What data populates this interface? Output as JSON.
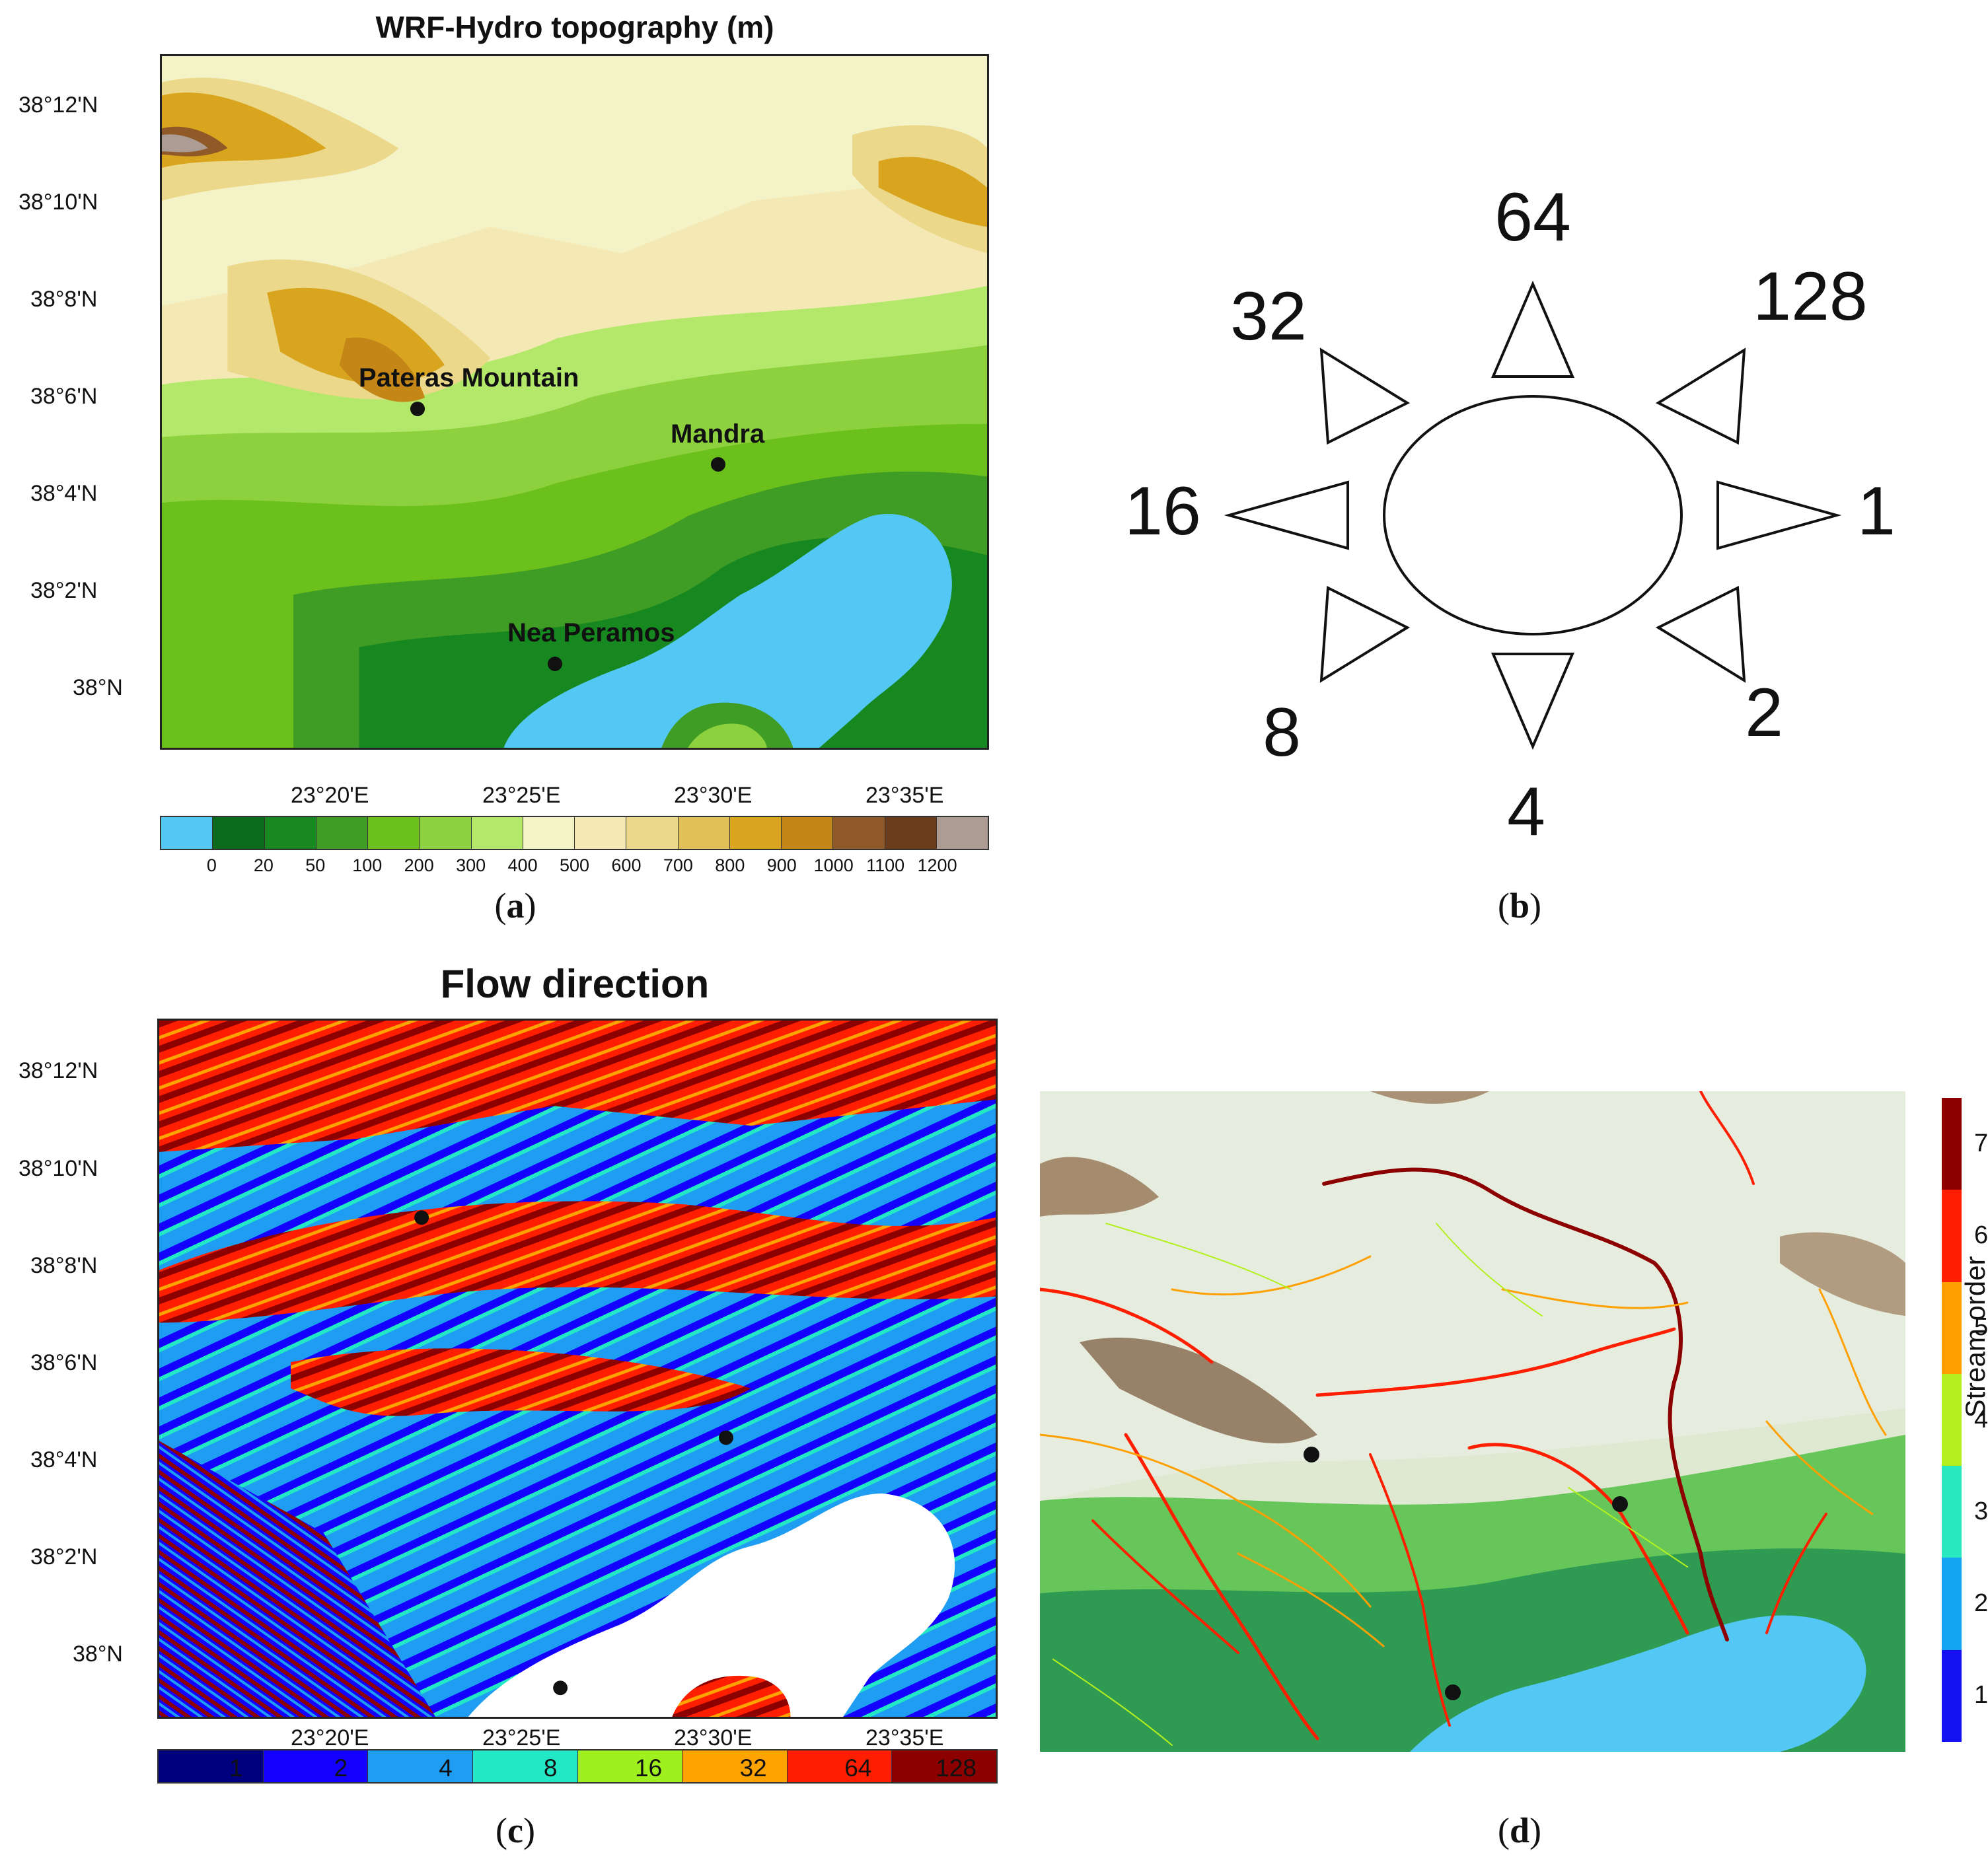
{
  "panel_a": {
    "title": "WRF-Hydro topography (m)",
    "lat_labels": [
      "38°12'N",
      "38°10'N",
      "38°8'N",
      "38°6'N",
      "38°4'N",
      "38°2'N",
      "38°N"
    ],
    "lon_labels": [
      "23°20'E",
      "23°25'E",
      "23°30'E",
      "23°35'E"
    ],
    "places": [
      {
        "name": "Pateras Mountain"
      },
      {
        "name": "Mandra"
      },
      {
        "name": "Nea Peramos"
      }
    ],
    "colorbar": {
      "colors": [
        "#54c8f5",
        "#0b6b1c",
        "#17871f",
        "#3f9c25",
        "#6bc01b",
        "#8dd23e",
        "#b3e86b",
        "#f3f3c7",
        "#f4e8b4",
        "#ecd88a",
        "#e0c057",
        "#d9a51f",
        "#c48717",
        "#8f5a28",
        "#6b3d1b",
        "#ad9c94"
      ],
      "ticks": [
        "0",
        "20",
        "50",
        "100",
        "200",
        "300",
        "400",
        "500",
        "600",
        "700",
        "800",
        "900",
        "1000",
        "1100",
        "1200"
      ]
    },
    "caption_letter": "a"
  },
  "panel_b": {
    "directions": [
      {
        "value": "64",
        "direction": "north"
      },
      {
        "value": "128",
        "direction": "northeast"
      },
      {
        "value": "1",
        "direction": "east"
      },
      {
        "value": "2",
        "direction": "southeast"
      },
      {
        "value": "4",
        "direction": "south"
      },
      {
        "value": "8",
        "direction": "southwest"
      },
      {
        "value": "16",
        "direction": "west"
      },
      {
        "value": "32",
        "direction": "northwest"
      }
    ],
    "caption_letter": "b"
  },
  "panel_c": {
    "title": "Flow direction",
    "lat_labels": [
      "38°12'N",
      "38°10'N",
      "38°8'N",
      "38°6'N",
      "38°4'N",
      "38°2'N",
      "38°N"
    ],
    "lon_labels": [
      "23°20'E",
      "23°25'E",
      "23°30'E",
      "23°35'E"
    ],
    "colorbar": {
      "colors": [
        "#00007f",
        "#1400ff",
        "#1e9df2",
        "#22e8c5",
        "#9ef01e",
        "#ffa300",
        "#ff1f00",
        "#8c0000"
      ],
      "labels": [
        "1",
        "2",
        "4",
        "8",
        "16",
        "32",
        "64",
        "128"
      ]
    },
    "caption_letter": "c"
  },
  "panel_d": {
    "colorbar": {
      "title": "Stream order",
      "colors": [
        "#1412f2",
        "#14a3f0",
        "#28e8c0",
        "#b3f01e",
        "#ffa000",
        "#ff1f00",
        "#8c0000"
      ],
      "ticks": [
        "1",
        "2",
        "3",
        "4",
        "5",
        "6",
        "7"
      ]
    },
    "caption_letter": "d"
  }
}
